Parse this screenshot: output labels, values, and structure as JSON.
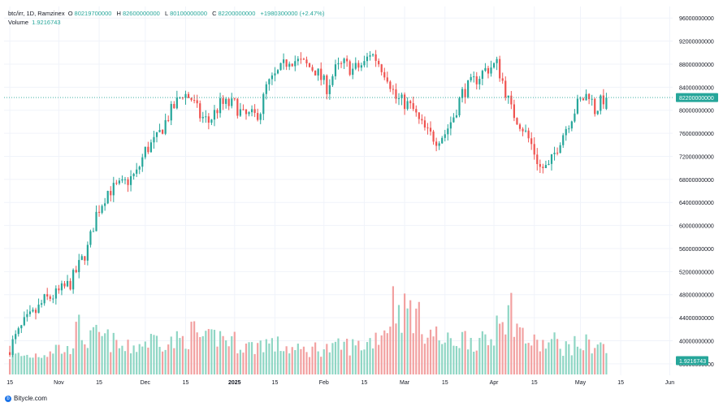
{
  "legend": {
    "symbol": "btc/irr, 1D, Ramzinex",
    "o_label": "O",
    "o_value": "80219700000",
    "h_label": "H",
    "h_value": "82600000000",
    "l_label": "L",
    "l_value": "80100000000",
    "c_label": "C",
    "c_value": "82200000000",
    "change": "+1980300000 (+2.47%)",
    "volume_label": "Volume",
    "volume_value": "1.9216743"
  },
  "footer": {
    "brand": "Bitycle.com"
  },
  "colors": {
    "up": "#26a69a",
    "down": "#ef5350",
    "up_vol": "#8fd6c4",
    "down_vol": "#f2a1a1",
    "grid": "#f0f3fa",
    "price_line": "#26a69a"
  },
  "chart_data": {
    "type": "candlestick",
    "symbol": "btc/irr",
    "interval": "1D",
    "exchange": "Ramzinex",
    "y_ticks": [
      96000000000,
      92000000000,
      88000000000,
      84000000000,
      80000000000,
      76000000000,
      72000000000,
      68000000000,
      64000000000,
      60000000000,
      56000000000,
      52000000000,
      48000000000,
      44000000000,
      40000000000,
      36000000000
    ],
    "y_tick_labels": [
      "96000000000",
      "92000000000",
      "88000000000",
      "84000000000",
      "80000000000",
      "76000000000",
      "72000000000",
      "68000000000",
      "64000000000",
      "60000000000",
      "56000000000",
      "52000000000",
      "48000000000",
      "44000000000",
      "40000000000",
      "36000000000"
    ],
    "ylim": [
      34000000000,
      98000000000
    ],
    "current_price": 82200000000,
    "current_price_label": "82200000000",
    "current_volume_label": "1.9216743",
    "x_ticks": [
      {
        "label": "15",
        "day": 0
      },
      {
        "label": "Nov",
        "day": 17
      },
      {
        "label": "15",
        "day": 31
      },
      {
        "label": "Dec",
        "day": 47
      },
      {
        "label": "15",
        "day": 61
      },
      {
        "label": "2025",
        "day": 78
      },
      {
        "label": "15",
        "day": 92
      },
      {
        "label": "Feb",
        "day": 109
      },
      {
        "label": "15",
        "day": 123
      },
      {
        "label": "Mar",
        "day": 137
      },
      {
        "label": "15",
        "day": 151
      },
      {
        "label": "Apr",
        "day": 168
      },
      {
        "label": "15",
        "day": 182
      },
      {
        "label": "May",
        "day": 198
      },
      {
        "label": "15",
        "day": 212
      },
      {
        "label": "Jun",
        "day": 229
      }
    ],
    "day_range": [
      -2,
      230
    ],
    "anchors": [
      [
        0,
        38
      ],
      [
        6,
        43
      ],
      [
        10,
        45
      ],
      [
        13,
        47
      ],
      [
        17,
        48
      ],
      [
        22,
        50
      ],
      [
        25,
        53
      ],
      [
        28,
        56
      ],
      [
        31,
        62
      ],
      [
        35,
        66
      ],
      [
        40,
        67
      ],
      [
        45,
        69
      ],
      [
        48,
        73
      ],
      [
        52,
        75
      ],
      [
        56,
        79
      ],
      [
        61,
        83
      ],
      [
        64,
        82
      ],
      [
        67,
        79
      ],
      [
        70,
        78
      ],
      [
        74,
        81
      ],
      [
        79,
        81
      ],
      [
        82,
        79
      ],
      [
        86,
        79
      ],
      [
        88,
        80
      ],
      [
        90,
        84
      ],
      [
        95,
        87
      ],
      [
        98,
        89
      ],
      [
        103,
        88
      ],
      [
        107,
        87
      ],
      [
        111,
        84
      ],
      [
        114,
        87
      ],
      [
        117,
        88
      ],
      [
        120,
        87
      ],
      [
        124,
        88
      ],
      [
        126,
        90
      ],
      [
        128,
        89
      ],
      [
        132,
        86
      ],
      [
        135,
        82
      ],
      [
        139,
        81
      ],
      [
        141,
        80
      ],
      [
        143,
        78
      ],
      [
        146,
        76
      ],
      [
        149,
        75
      ],
      [
        152,
        76
      ],
      [
        155,
        79
      ],
      [
        158,
        83
      ],
      [
        162,
        85
      ],
      [
        164,
        86
      ],
      [
        166,
        87
      ],
      [
        170,
        88
      ],
      [
        172,
        85
      ],
      [
        175,
        80
      ],
      [
        179,
        77
      ],
      [
        182,
        74
      ],
      [
        185,
        70
      ],
      [
        188,
        70
      ],
      [
        192,
        75
      ],
      [
        195,
        78
      ],
      [
        198,
        81
      ],
      [
        202,
        83
      ],
      [
        204,
        80
      ],
      [
        207,
        82
      ]
    ],
    "volume_anchors": [
      [
        0,
        0.25
      ],
      [
        6,
        0.24
      ],
      [
        12,
        0.28
      ],
      [
        16,
        0.35
      ],
      [
        20,
        0.3
      ],
      [
        24,
        0.6
      ],
      [
        27,
        0.42
      ],
      [
        30,
        0.5
      ],
      [
        34,
        0.45
      ],
      [
        40,
        0.32
      ],
      [
        46,
        0.4
      ],
      [
        52,
        0.48
      ],
      [
        55,
        0.4
      ],
      [
        60,
        0.45
      ],
      [
        64,
        0.55
      ],
      [
        68,
        0.42
      ],
      [
        72,
        0.5
      ],
      [
        76,
        0.45
      ],
      [
        80,
        0.4
      ],
      [
        84,
        0.35
      ],
      [
        88,
        0.42
      ],
      [
        92,
        0.38
      ],
      [
        96,
        0.35
      ],
      [
        100,
        0.3
      ],
      [
        104,
        0.32
      ],
      [
        108,
        0.35
      ],
      [
        112,
        0.32
      ],
      [
        116,
        0.38
      ],
      [
        120,
        0.36
      ],
      [
        124,
        0.4
      ],
      [
        128,
        0.52
      ],
      [
        131,
        0.62
      ],
      [
        133,
        0.95
      ],
      [
        136,
        0.8
      ],
      [
        139,
        0.85
      ],
      [
        142,
        0.7
      ],
      [
        145,
        0.55
      ],
      [
        148,
        0.5
      ],
      [
        151,
        0.4
      ],
      [
        155,
        0.45
      ],
      [
        159,
        0.48
      ],
      [
        163,
        0.42
      ],
      [
        166,
        0.4
      ],
      [
        168,
        0.48
      ],
      [
        170,
        1.0
      ],
      [
        172,
        0.7
      ],
      [
        174,
        0.85
      ],
      [
        177,
        0.55
      ],
      [
        181,
        0.4
      ],
      [
        185,
        0.38
      ],
      [
        189,
        0.42
      ],
      [
        193,
        0.35
      ],
      [
        197,
        0.38
      ],
      [
        201,
        0.4
      ],
      [
        205,
        0.38
      ],
      [
        207,
        0.3
      ]
    ],
    "last_day": 207
  }
}
